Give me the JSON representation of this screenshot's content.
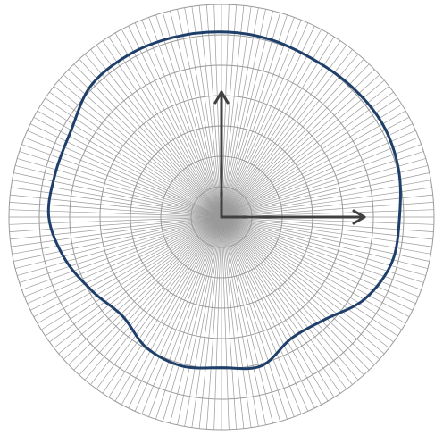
{
  "chart_data": {
    "type": "polar-line",
    "title": "",
    "grid": true,
    "radial_rings": 7,
    "spokes": 180,
    "r_max": 240,
    "colors": {
      "grid": "#9a9a9a",
      "curve": "#1f3f6b",
      "axis": "#404040"
    },
    "series": [
      {
        "angles_deg": [
          0,
          15,
          30,
          45,
          60,
          75,
          90,
          105,
          120,
          135,
          150,
          165,
          180,
          195,
          210,
          225,
          240,
          255,
          270,
          285,
          300,
          315,
          330,
          345
        ],
        "r": [
          201,
          207,
          210,
          208,
          206,
          208,
          209,
          210,
          211,
          209,
          196,
          194,
          195,
          183,
          168,
          158,
          170,
          174,
          170,
          174,
          158,
          164,
          186,
          199
        ]
      }
    ],
    "axes_vectors": [
      {
        "name": "x",
        "angle_deg": 0,
        "length": 160
      },
      {
        "name": "y",
        "angle_deg": 90,
        "length": 140
      }
    ]
  }
}
